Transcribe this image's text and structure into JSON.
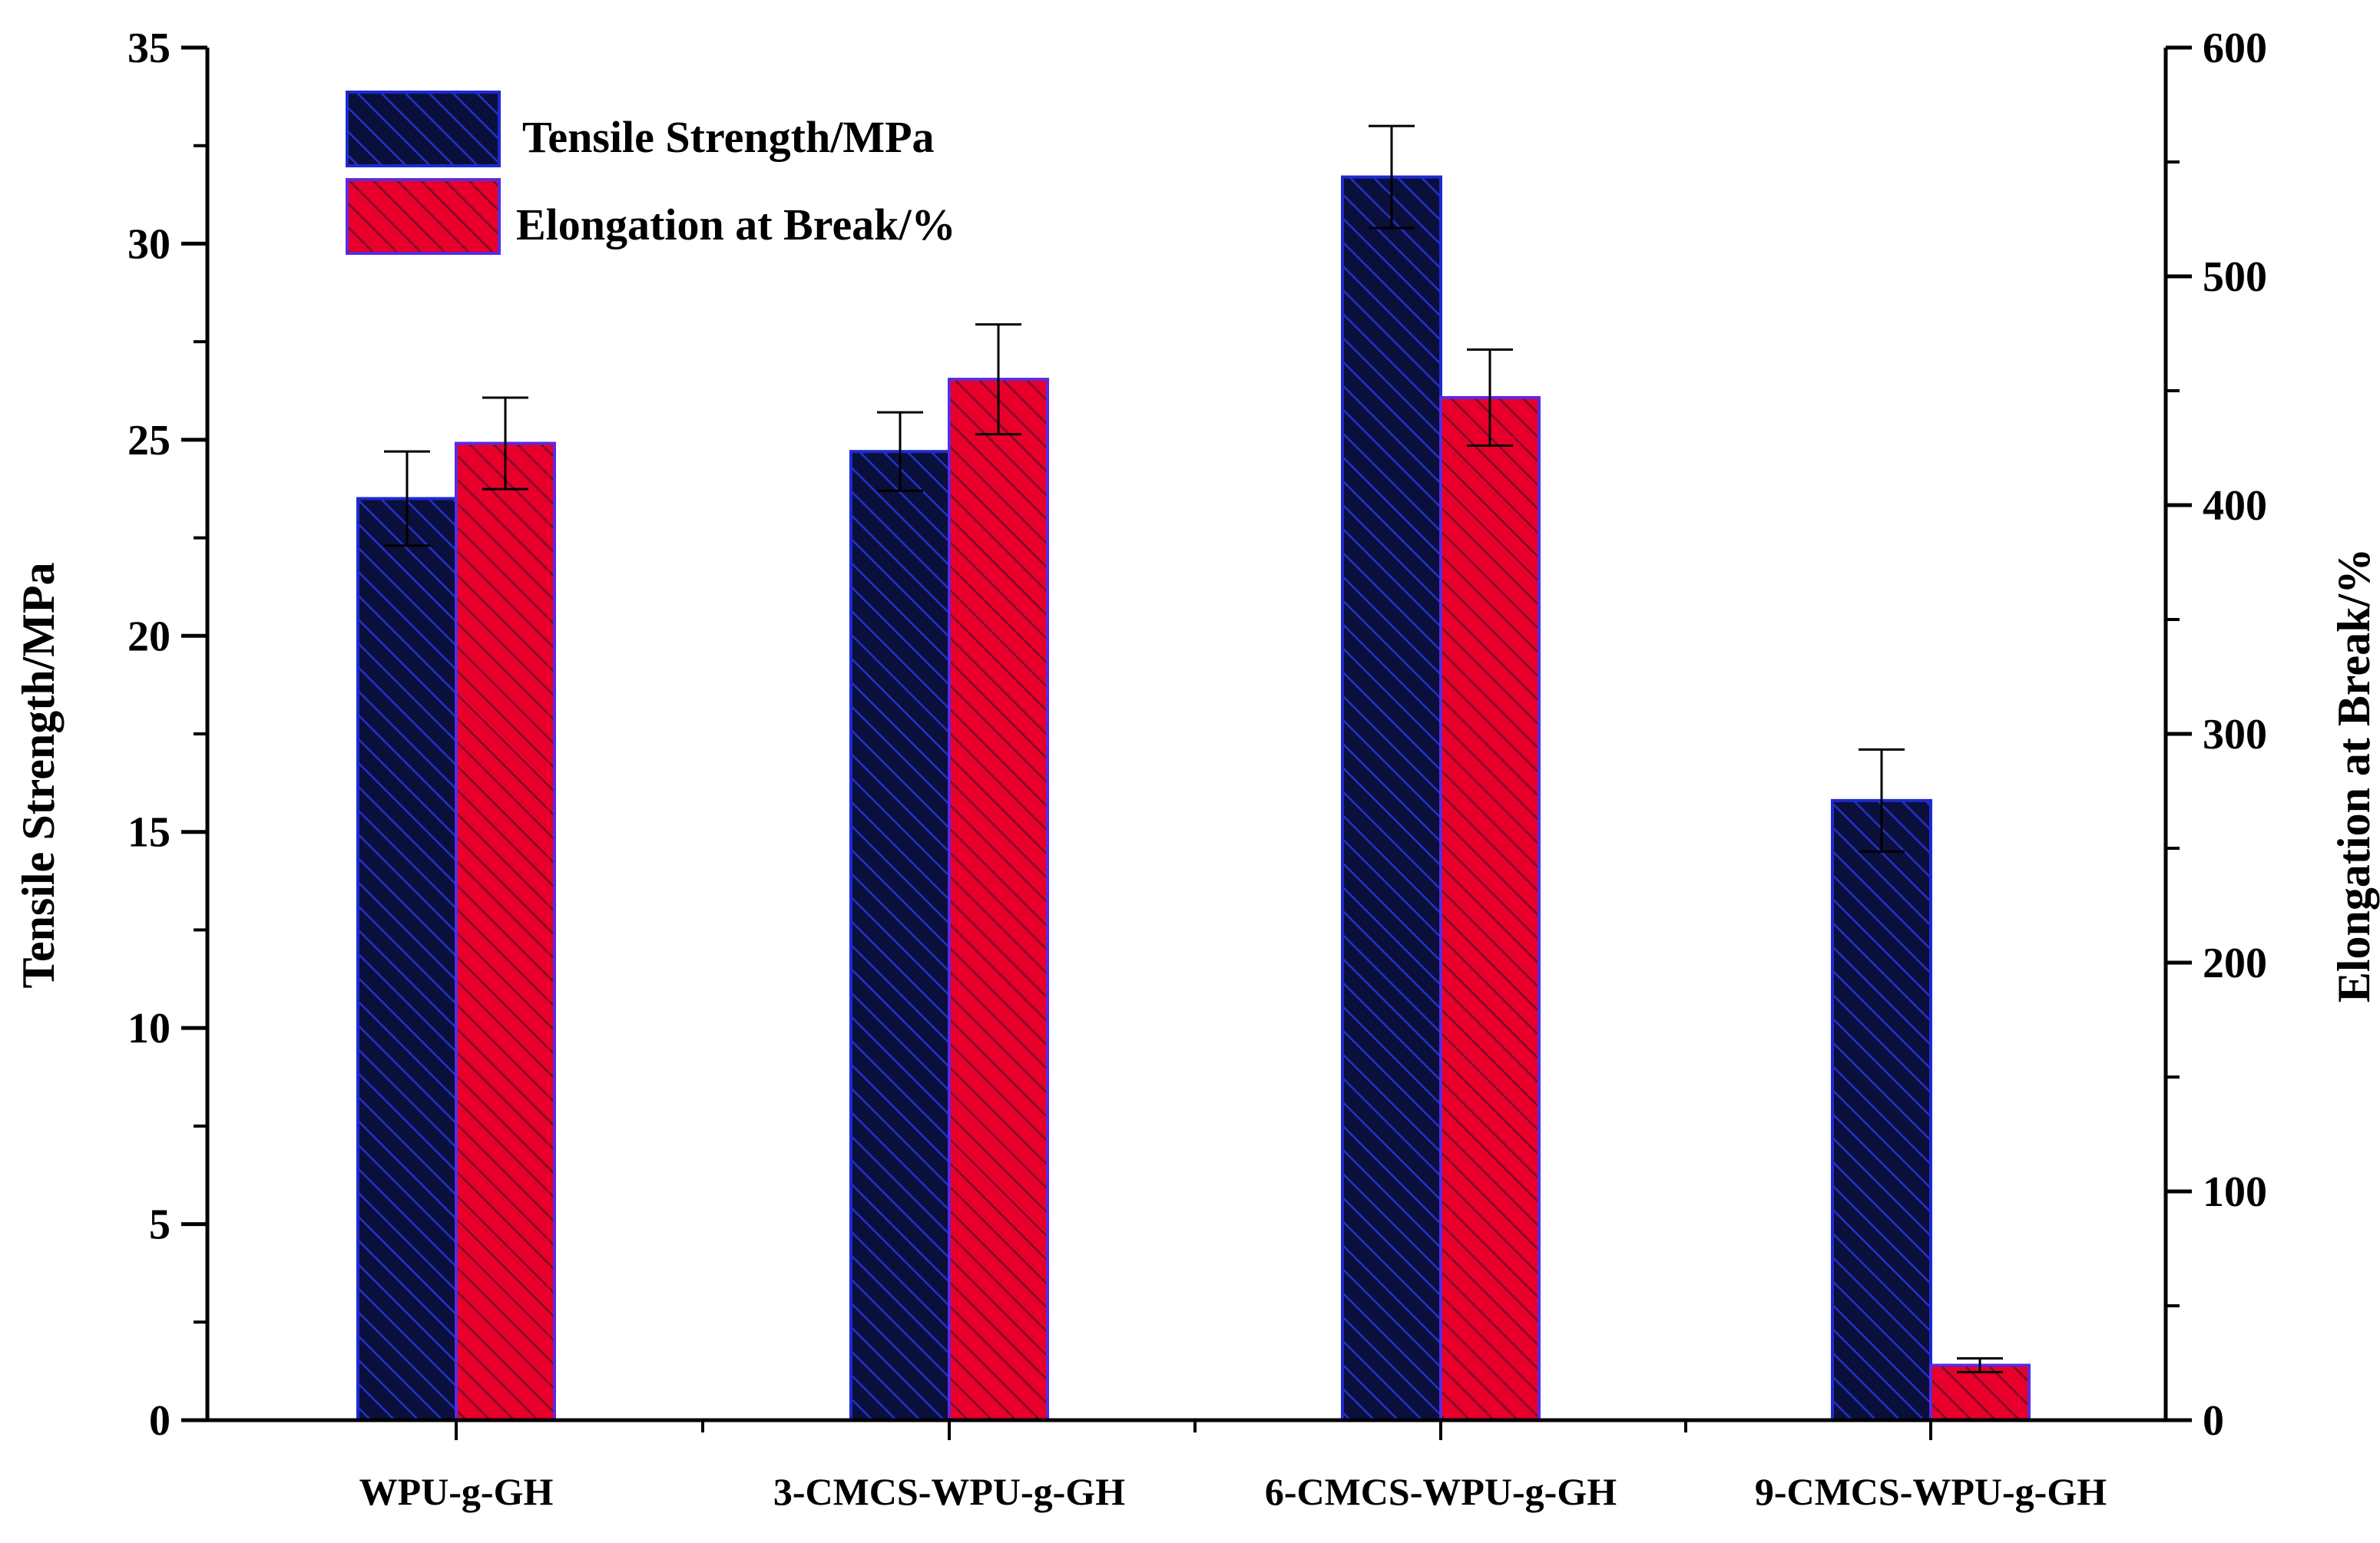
{
  "chart_data": {
    "type": "bar",
    "title": "",
    "categories": [
      "WPU-g-GH",
      "3-CMCS-WPU-g-GH",
      "6-CMCS-WPU-g-GH",
      "9-CMCS-WPU-g-GH"
    ],
    "xlabel": "",
    "y_left": {
      "label": "Tensile Strength/MPa",
      "range": [
        0,
        35
      ],
      "ticks": [
        0,
        5,
        10,
        15,
        20,
        25,
        30,
        35
      ],
      "tick_labels": [
        "0",
        "5",
        "10",
        "15",
        "20",
        "25",
        "30",
        "35"
      ]
    },
    "y_right": {
      "label": "Elongation at Break/%",
      "range": [
        0,
        600
      ],
      "ticks": [
        0,
        100,
        200,
        300,
        400,
        500,
        600
      ],
      "tick_labels": [
        "0",
        "100",
        "200",
        "300",
        "400",
        "500",
        "600"
      ]
    },
    "series": [
      {
        "name": "Tensile Strength/MPa",
        "axis": "left",
        "values": [
          23.5,
          24.7,
          31.7,
          15.8
        ],
        "errors": [
          1.2,
          1.0,
          1.3,
          1.3
        ],
        "color": "#0a0f3c",
        "edge_color": "#1e2ad0",
        "hatch_color": "#2233cc"
      },
      {
        "name": "Elongation at Break/%",
        "axis": "right",
        "values": [
          427,
          455,
          447,
          24
        ],
        "errors": [
          20,
          24,
          21,
          3
        ],
        "color": "#e8002a",
        "edge_color": "#5a2ae0",
        "hatch_color": "#7a0a2a"
      }
    ],
    "legend": {
      "placement": "top-left"
    },
    "grid": false
  }
}
